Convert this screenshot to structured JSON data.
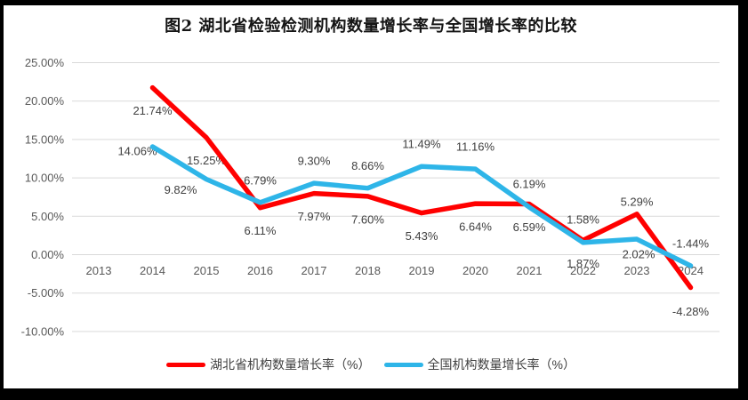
{
  "chart_data": {
    "type": "line",
    "title": "图2 湖北省检验检测机构数量增长率与全国增长率的比较",
    "categories": [
      "2013",
      "2014",
      "2015",
      "2016",
      "2017",
      "2018",
      "2019",
      "2020",
      "2021",
      "2022",
      "2023",
      "2024"
    ],
    "y_axis": {
      "min": -10,
      "max": 25,
      "step": 5,
      "tick_values": [
        25,
        20,
        15,
        10,
        5,
        0,
        -5,
        -10
      ],
      "tick_labels": [
        "25.00%",
        "20.00%",
        "15.00%",
        "10.00%",
        "5.00%",
        "0.00%",
        "-5.00%",
        "-10.00%"
      ]
    },
    "grid": true,
    "legend_position": "bottom",
    "colors": {
      "grid": "#D9D9D9",
      "tick_text": "#595959",
      "label_text": "#404040"
    },
    "series": [
      {
        "id": "hubei",
        "name": "湖北省机构数量增长率（%）",
        "color": "#FF0000",
        "values": [
          null,
          21.74,
          15.25,
          6.11,
          7.97,
          7.6,
          5.43,
          6.64,
          6.59,
          1.87,
          5.29,
          -4.28
        ],
        "point_labels": [
          null,
          "21.74%",
          "15.25%",
          "6.11%",
          "7.97%",
          "7.60%",
          "5.43%",
          "6.64%",
          "6.59%",
          "1.87%",
          "5.29%",
          "-4.28%"
        ],
        "label_offsets": [
          null,
          [
            0,
            26
          ],
          [
            0,
            26
          ],
          [
            0,
            26
          ],
          [
            0,
            26
          ],
          [
            0,
            26
          ],
          [
            0,
            26
          ],
          [
            0,
            26
          ],
          [
            0,
            26
          ],
          [
            0,
            26
          ],
          [
            0,
            -14
          ],
          [
            0,
            27
          ]
        ]
      },
      {
        "id": "national",
        "name": "全国机构数量增长率（%）",
        "color": "#2EB5E8",
        "values": [
          null,
          14.06,
          9.82,
          6.79,
          9.3,
          8.66,
          11.49,
          11.16,
          6.19,
          1.58,
          2.02,
          -1.44
        ],
        "point_labels": [
          null,
          "14.06%",
          "9.82%",
          "6.79%",
          "9.30%",
          "8.66%",
          "11.49%",
          "11.16%",
          "6.19%",
          "1.58%",
          "2.02%",
          "-1.44%"
        ],
        "label_offsets": [
          null,
          [
            -17,
            5
          ],
          [
            -29,
            12
          ],
          [
            0,
            -25
          ],
          [
            0,
            -25
          ],
          [
            0,
            -25
          ],
          [
            0,
            -25
          ],
          [
            0,
            -25
          ],
          [
            0,
            -26
          ],
          [
            0,
            -26
          ],
          [
            2,
            17
          ],
          [
            0,
            -25
          ]
        ]
      }
    ]
  }
}
